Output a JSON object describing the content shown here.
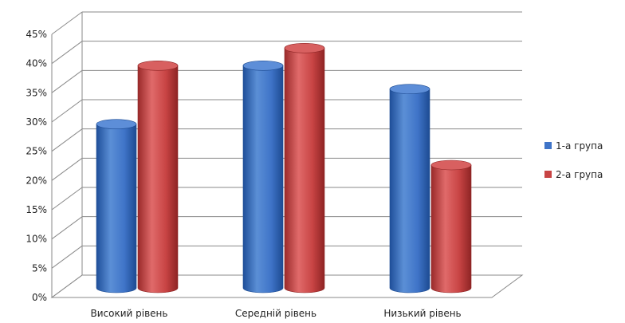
{
  "chart_data": {
    "type": "bar",
    "categories": [
      "Високий рівень",
      "Середній рівень",
      "Низький рівень"
    ],
    "series": [
      {
        "name": "1-а група",
        "color": "#3f74c8",
        "values": [
          28,
          38,
          34
        ]
      },
      {
        "name": "2-а група",
        "color": "#c84444",
        "values": [
          38,
          41,
          21
        ]
      }
    ],
    "ylim": [
      0,
      45
    ],
    "yticks": [
      "0%",
      "5%",
      "10%",
      "15%",
      "20%",
      "25%",
      "30%",
      "35%",
      "40%",
      "45%"
    ],
    "unit": "%",
    "grid": true,
    "style": "3d-cylinder",
    "legend_position": "right"
  }
}
